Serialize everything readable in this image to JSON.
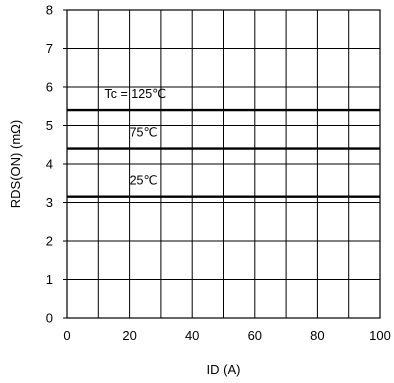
{
  "chart_data": {
    "type": "line",
    "xlabel": "ID (A)",
    "ylabel": "RDS(ON) (mΩ)",
    "xlim": [
      0,
      100
    ],
    "ylim": [
      0,
      8
    ],
    "grid": true,
    "x_ticks": [
      0,
      20,
      40,
      60,
      80,
      100
    ],
    "y_ticks": [
      0,
      1,
      2,
      3,
      4,
      5,
      6,
      7,
      8
    ],
    "x_minor_step": 10,
    "series": [
      {
        "name": "Tc = 125℃",
        "x": [
          0,
          100
        ],
        "y": [
          5.4,
          5.4
        ],
        "color": "#000000"
      },
      {
        "name": "75℃",
        "x": [
          0,
          100
        ],
        "y": [
          4.4,
          4.4
        ],
        "color": "#000000"
      },
      {
        "name": "25℃",
        "x": [
          0,
          100
        ],
        "y": [
          3.15,
          3.15
        ],
        "color": "#000000"
      }
    ],
    "series_label_positions_data": [
      {
        "x": 12,
        "y": 5.72
      },
      {
        "x": 20,
        "y": 4.72
      },
      {
        "x": 20,
        "y": 3.47
      }
    ]
  }
}
